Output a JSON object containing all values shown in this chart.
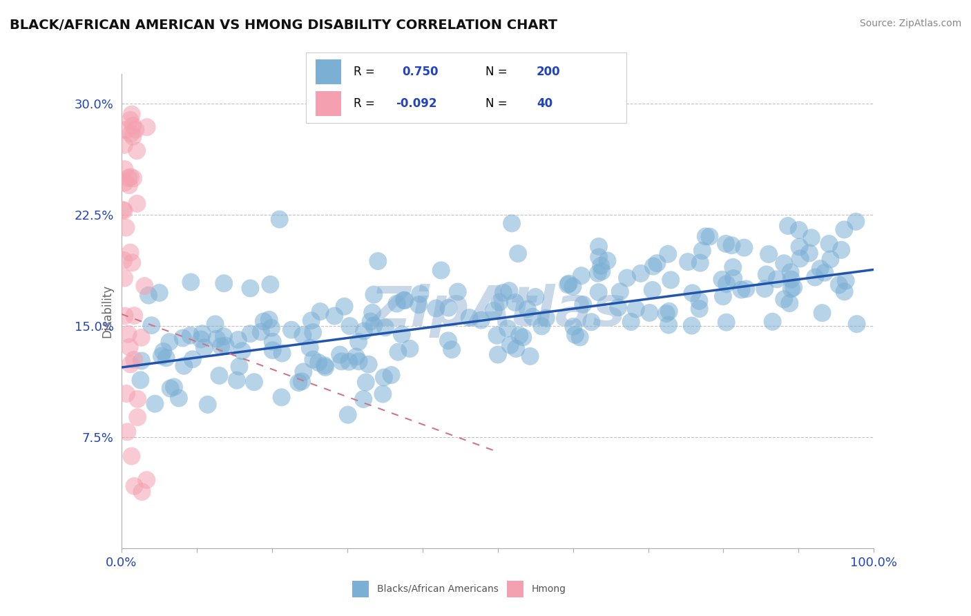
{
  "title": "BLACK/AFRICAN AMERICAN VS HMONG DISABILITY CORRELATION CHART",
  "source_text": "Source: ZipAtlas.com",
  "ylabel": "Disability",
  "xlim": [
    0.0,
    1.0
  ],
  "ylim": [
    0.0,
    0.32
  ],
  "xticks": [
    0.0,
    0.1,
    0.2,
    0.3,
    0.4,
    0.5,
    0.6,
    0.7,
    0.8,
    0.9,
    1.0
  ],
  "yticks": [
    0.075,
    0.15,
    0.225,
    0.3
  ],
  "ytick_labels": [
    "7.5%",
    "15.0%",
    "22.5%",
    "30.0%"
  ],
  "blue_color": "#7BAFD4",
  "pink_color": "#F4A0B0",
  "blue_line_color": "#2255AA",
  "pink_line_color": "#CC7788",
  "grid_color": "#BBBBBB",
  "watermark_text": "ZipAtlas",
  "watermark_color": "#C8D8E8",
  "legend_text_color": "#2244BB",
  "blue_trend_start_y": 0.122,
  "blue_trend_end_y": 0.188,
  "pink_trend_start_x": 0.0,
  "pink_trend_start_y": 0.158,
  "pink_trend_end_x": 0.5,
  "pink_trend_end_y": 0.065
}
